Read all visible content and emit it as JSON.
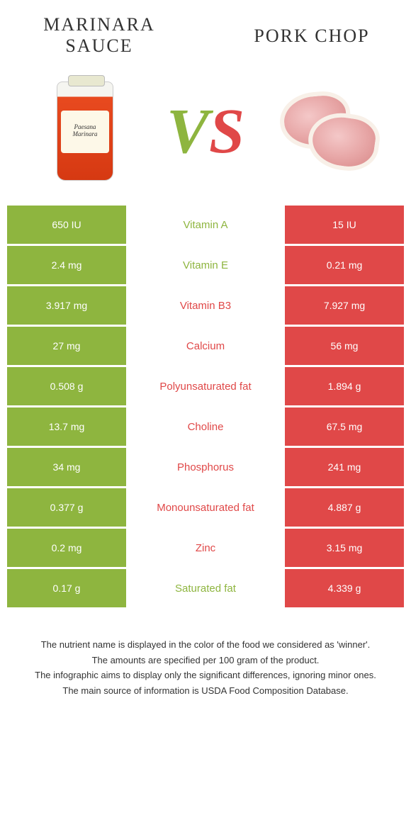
{
  "header": {
    "left_title": "Marinara sauce",
    "right_title": "Pork chop",
    "vs": "VS",
    "jar_label": "Paesana Marinara"
  },
  "colors": {
    "left_bg": "#8eb53f",
    "right_bg": "#e04848",
    "left_text": "#8eb53f",
    "right_text": "#e04848",
    "vs_green": "#8eb53f",
    "vs_red": "#e04848"
  },
  "rows": [
    {
      "left": "650 IU",
      "label": "Vitamin A",
      "right": "15 IU",
      "winner": "left"
    },
    {
      "left": "2.4 mg",
      "label": "Vitamin E",
      "right": "0.21 mg",
      "winner": "left"
    },
    {
      "left": "3.917 mg",
      "label": "Vitamin B3",
      "right": "7.927 mg",
      "winner": "right"
    },
    {
      "left": "27 mg",
      "label": "Calcium",
      "right": "56 mg",
      "winner": "right"
    },
    {
      "left": "0.508 g",
      "label": "Polyunsaturated fat",
      "right": "1.894 g",
      "winner": "right"
    },
    {
      "left": "13.7 mg",
      "label": "Choline",
      "right": "67.5 mg",
      "winner": "right"
    },
    {
      "left": "34 mg",
      "label": "Phosphorus",
      "right": "241 mg",
      "winner": "right"
    },
    {
      "left": "0.377 g",
      "label": "Monounsaturated fat",
      "right": "4.887 g",
      "winner": "right"
    },
    {
      "left": "0.2 mg",
      "label": "Zinc",
      "right": "3.15 mg",
      "winner": "right"
    },
    {
      "left": "0.17 g",
      "label": "Saturated fat",
      "right": "4.339 g",
      "winner": "left"
    }
  ],
  "footer": {
    "line1": "The nutrient name is displayed in the color of the food we considered as 'winner'.",
    "line2": "The amounts are specified per 100 gram of the product.",
    "line3": "The infographic aims to display only the significant differences, ignoring minor ones.",
    "line4": "The main source of information is USDA Food Composition Database."
  }
}
